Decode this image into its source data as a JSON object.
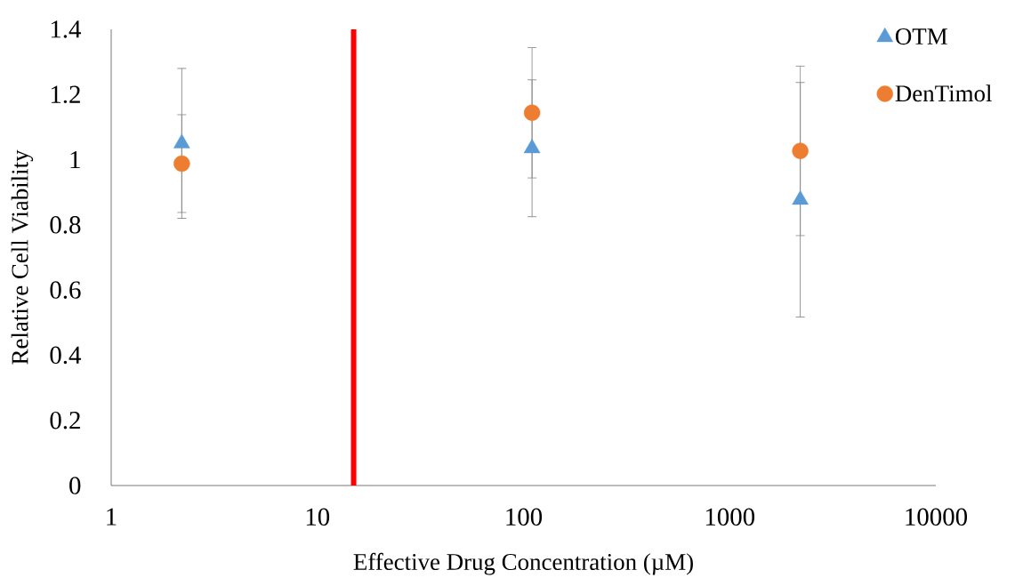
{
  "chart_data": {
    "type": "scatter",
    "xlabel": "Effective Drug Concentration (µM)",
    "ylabel": "Relative Cell Viability",
    "x": [
      2.2,
      110,
      2200
    ],
    "series": [
      {
        "name": "OTM",
        "color": "#5b9bd5",
        "marker": "triangle",
        "values": [
          1.05,
          1.035,
          0.877
        ],
        "errors": [
          0.23,
          0.21,
          0.36
        ]
      },
      {
        "name": "DenTimol",
        "color": "#ed7d31",
        "marker": "circle",
        "values": [
          0.988,
          1.144,
          1.027
        ],
        "errors": [
          0.15,
          0.2,
          0.26
        ]
      }
    ],
    "log": "x",
    "xlim": [
      1,
      10000
    ],
    "xticks": [
      1,
      10,
      100,
      1000,
      10000
    ],
    "ylim": [
      0,
      1.4
    ],
    "yticks": [
      0,
      0.2,
      0.4,
      0.6,
      0.8,
      1,
      1.2,
      1.4
    ],
    "legend": "top right",
    "ref_lines": [
      {
        "axis": "x",
        "value": 15,
        "color": "#ff0000"
      }
    ]
  }
}
